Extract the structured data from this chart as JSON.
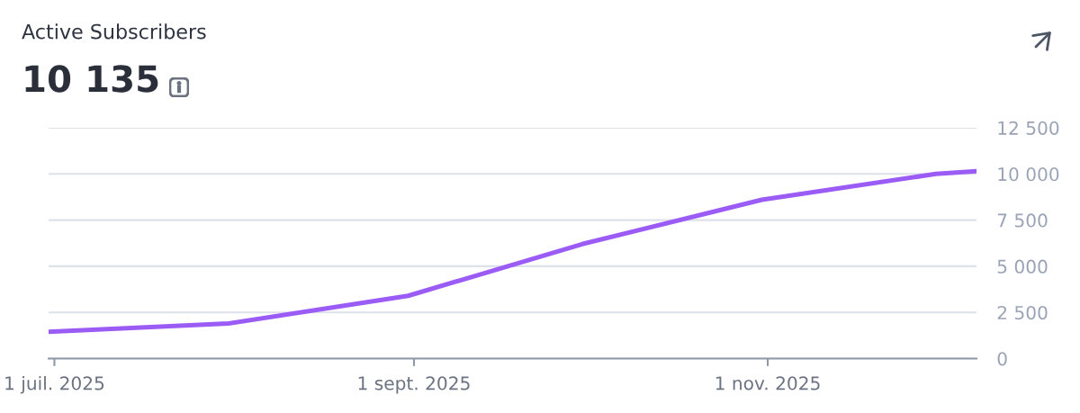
{
  "chart_data": {
    "type": "line",
    "title": "Active Subscribers",
    "subtitle": "10 135",
    "x": [
      "2025-06-30",
      "2025-07-31",
      "2025-08-31",
      "2025-09-30",
      "2025-10-31",
      "2025-11-30",
      "2025-12-07"
    ],
    "series": [
      {
        "color": "#9b5cf6",
        "values": [
          1450,
          1900,
          3400,
          6200,
          8600,
          10000,
          10150
        ]
      }
    ],
    "xlim": [
      "2025-06-30",
      "2025-12-07"
    ],
    "xticks": [
      {
        "value": "2025-07-01",
        "label": "1 juil. 2025"
      },
      {
        "value": "2025-09-01",
        "label": "1 sept. 2025"
      },
      {
        "value": "2025-11-01",
        "label": "1 nov. 2025"
      }
    ],
    "ylim": [
      0,
      12500
    ],
    "yticks": [
      0,
      {
        "value": 2500,
        "label": "2 500"
      },
      {
        "value": 5000,
        "label": "5 000"
      },
      {
        "value": 7500,
        "label": "7 500"
      },
      {
        "value": 10000,
        "label": "10 000"
      },
      {
        "value": 12500,
        "label": "12 500"
      }
    ],
    "grid": "y",
    "line_style": "solid"
  }
}
